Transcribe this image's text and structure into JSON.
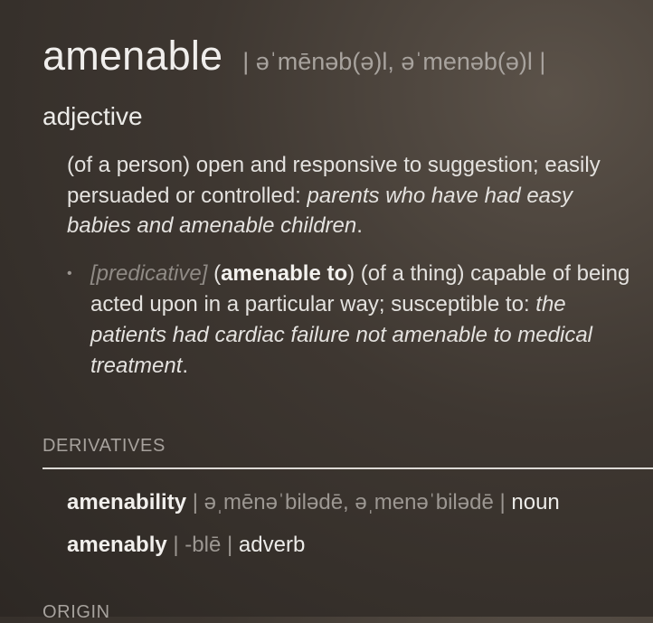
{
  "entry": {
    "headword": "amenable",
    "pronunciation": "| əˈmēnəb(ə)l, əˈmenəb(ə)l |",
    "part_of_speech": "adjective",
    "definition": {
      "text": "(of a person) open and responsive to suggestion; easily persuaded or controlled: ",
      "example": "parents who have had easy babies and amenable children",
      "end": "."
    },
    "sub_definition": {
      "bullet": "•",
      "register": "[predicative]",
      "open_paren": " (",
      "phrase": "amenable to",
      "text": ") (of a thing) capable of being acted upon in a particular way; susceptible to: ",
      "example": "the patients had cardiac failure not amenable to medical treatment",
      "end": "."
    }
  },
  "sections": {
    "derivatives_title": "DERIVATIVES",
    "origin_title": "ORIGIN"
  },
  "derivatives": [
    {
      "word": "amenability",
      "sep1": " | ",
      "pronunciation": "əˌmēnəˈbilədē, əˌmenəˈbilədē",
      "sep2": " | ",
      "pos": "noun"
    },
    {
      "word": "amenably",
      "sep1": " | ",
      "pronunciation": "-blē",
      "sep2": " | ",
      "pos": "adverb"
    }
  ]
}
